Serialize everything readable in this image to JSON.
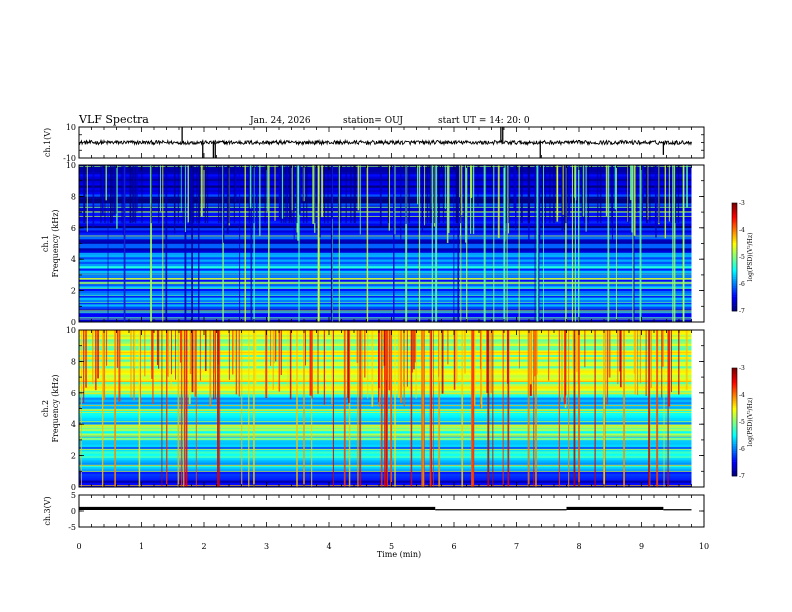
{
  "header": {
    "title": "VLF Spectra",
    "date": "Jan. 24, 2026",
    "station": "station= OUJ",
    "start": "start  UT =   14: 20: 0"
  },
  "chart_data": [
    {
      "type": "line",
      "panel": "ch1-waveform",
      "ylabel": "ch.1(V)",
      "ylim": [
        -10,
        10
      ],
      "yticks": [
        10,
        -10
      ],
      "xlim": [
        0,
        10
      ],
      "baseline": 0,
      "spikes_min": [
        {
          "x": 1.65,
          "y": 10
        },
        {
          "x": 1.98,
          "y": -10
        },
        {
          "x": 2.15,
          "y": -10
        },
        {
          "x": 2.18,
          "y": -10
        },
        {
          "x": 6.75,
          "y": 10
        },
        {
          "x": 6.78,
          "y": 10
        },
        {
          "x": 7.38,
          "y": -10
        },
        {
          "x": 9.35,
          "y": -8
        }
      ]
    },
    {
      "type": "heatmap",
      "panel": "ch1-spectrogram",
      "ylabel": "ch.1\nFrequency (kHz)",
      "ylim": [
        0,
        10
      ],
      "yticks": [
        0,
        2,
        4,
        6,
        8,
        10
      ],
      "xlim": [
        0,
        9.8
      ],
      "colorbar": {
        "label": "log(PSD)(V²/Hz)",
        "min": -7,
        "max": -3,
        "ticks": [
          -3,
          -4,
          -5,
          -6,
          -7
        ]
      },
      "mean_log_psd_by_band": [
        {
          "band_khz": [
            0,
            1
          ],
          "value": -6.3
        },
        {
          "band_khz": [
            1,
            2
          ],
          "value": -6.0
        },
        {
          "band_khz": [
            2,
            3.5
          ],
          "value": -6.1
        },
        {
          "band_khz": [
            3.5,
            4.5
          ],
          "value": -5.8
        },
        {
          "band_khz": [
            4.5,
            6
          ],
          "value": -6.4
        },
        {
          "band_khz": [
            6,
            10
          ],
          "value": -6.6
        }
      ]
    },
    {
      "type": "heatmap",
      "panel": "ch2-spectrogram",
      "ylabel": "ch.2\nFrequency (kHz)",
      "ylim": [
        0,
        10
      ],
      "yticks": [
        0,
        2,
        4,
        6,
        8,
        10
      ],
      "xlim": [
        0,
        9.8
      ],
      "colorbar": {
        "label": "log(PSD)(V²/Hz)",
        "min": -7,
        "max": -3,
        "ticks": [
          -3,
          -4,
          -5,
          -6,
          -7
        ]
      },
      "mean_log_psd_by_band": [
        {
          "band_khz": [
            0,
            1
          ],
          "value": -6.5
        },
        {
          "band_khz": [
            1,
            3
          ],
          "value": -5.7
        },
        {
          "band_khz": [
            3,
            4
          ],
          "value": -5.2
        },
        {
          "band_khz": [
            4,
            6
          ],
          "value": -5.6
        },
        {
          "band_khz": [
            6,
            10
          ],
          "value": -4.8
        }
      ]
    },
    {
      "type": "line",
      "panel": "ch3-signal",
      "ylabel": "ch.3(V)",
      "ylim": [
        -5,
        5
      ],
      "yticks": [
        5,
        0,
        -5
      ],
      "xlim": [
        0,
        10
      ],
      "segments": [
        {
          "x0": 0,
          "x1": 5.7,
          "y": 0.8
        },
        {
          "x0": 5.7,
          "x1": 7.8,
          "y": 0.4
        },
        {
          "x0": 7.8,
          "x1": 9.35,
          "y": 0.8
        },
        {
          "x0": 9.35,
          "x1": 9.8,
          "y": 0.4
        }
      ]
    }
  ],
  "xaxis": {
    "label": "Time (min)",
    "ticks": [
      0,
      1,
      2,
      3,
      4,
      5,
      6,
      7,
      8,
      9,
      10
    ]
  }
}
